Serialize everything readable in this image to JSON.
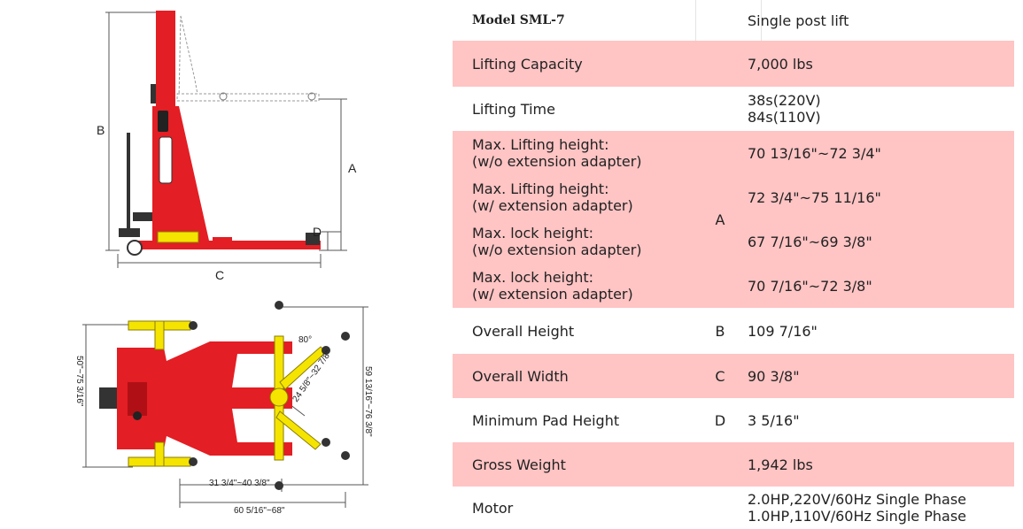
{
  "diagram": {
    "side_labels": {
      "a": "A",
      "b": "B",
      "c": "C",
      "d": "D"
    },
    "top_dims": {
      "height": "50\"~75 3/16\"",
      "arm_span": "59 13/16\"~76 3/8\"",
      "arm_reach": "24 5/8\"~32 7/8\"",
      "angle": "80°",
      "inner_width": "31 3/4\"~40 3/8\"",
      "outer_width": "60 5/16\"~68\""
    },
    "colors": {
      "lift_red": "#e31e24",
      "arm_yellow": "#f5e400",
      "row_pink": "#ffc4c4"
    }
  },
  "spec": {
    "model_label": "Model SML-7",
    "model_type": "Single post lift",
    "capacity_label": "Lifting Capacity",
    "capacity_value": "7,000 lbs",
    "time_label": "Lifting Time",
    "time_value_1": "38s(220V)",
    "time_value_2": "84s(110V)",
    "h1_label_1": "Max. Lifting height:",
    "h1_label_2": "(w/o extension adapter)",
    "h1_value": "70 13/16\"~72 3/4\"",
    "h2_label_1": "Max. Lifting height:",
    "h2_label_2": "(w/ extension adapter)",
    "h2_value": "72 3/4\"~75 11/16\"",
    "h3_label_1": "Max. lock height:",
    "h3_label_2": "(w/o extension adapter)",
    "h3_value": "67 7/16\"~69 3/8\"",
    "h4_label_1": "Max. lock height:",
    "h4_label_2": "(w/ extension adapter)",
    "h4_value": "70 7/16\"~72 3/8\"",
    "group_marker": "A",
    "height_label": "Overall Height",
    "height_marker": "B",
    "height_value": "109 7/16\"",
    "width_label": "Overall Width",
    "width_marker": "C",
    "width_value": "90 3/8\"",
    "pad_label": "Minimum Pad Height",
    "pad_marker": "D",
    "pad_value": "3 5/16\"",
    "weight_label": "Gross Weight",
    "weight_value": "1,942 lbs",
    "motor_label": "Motor",
    "motor_value_1": "2.0HP,220V/60Hz Single Phase",
    "motor_value_2": "1.0HP,110V/60Hz Single Phase"
  }
}
